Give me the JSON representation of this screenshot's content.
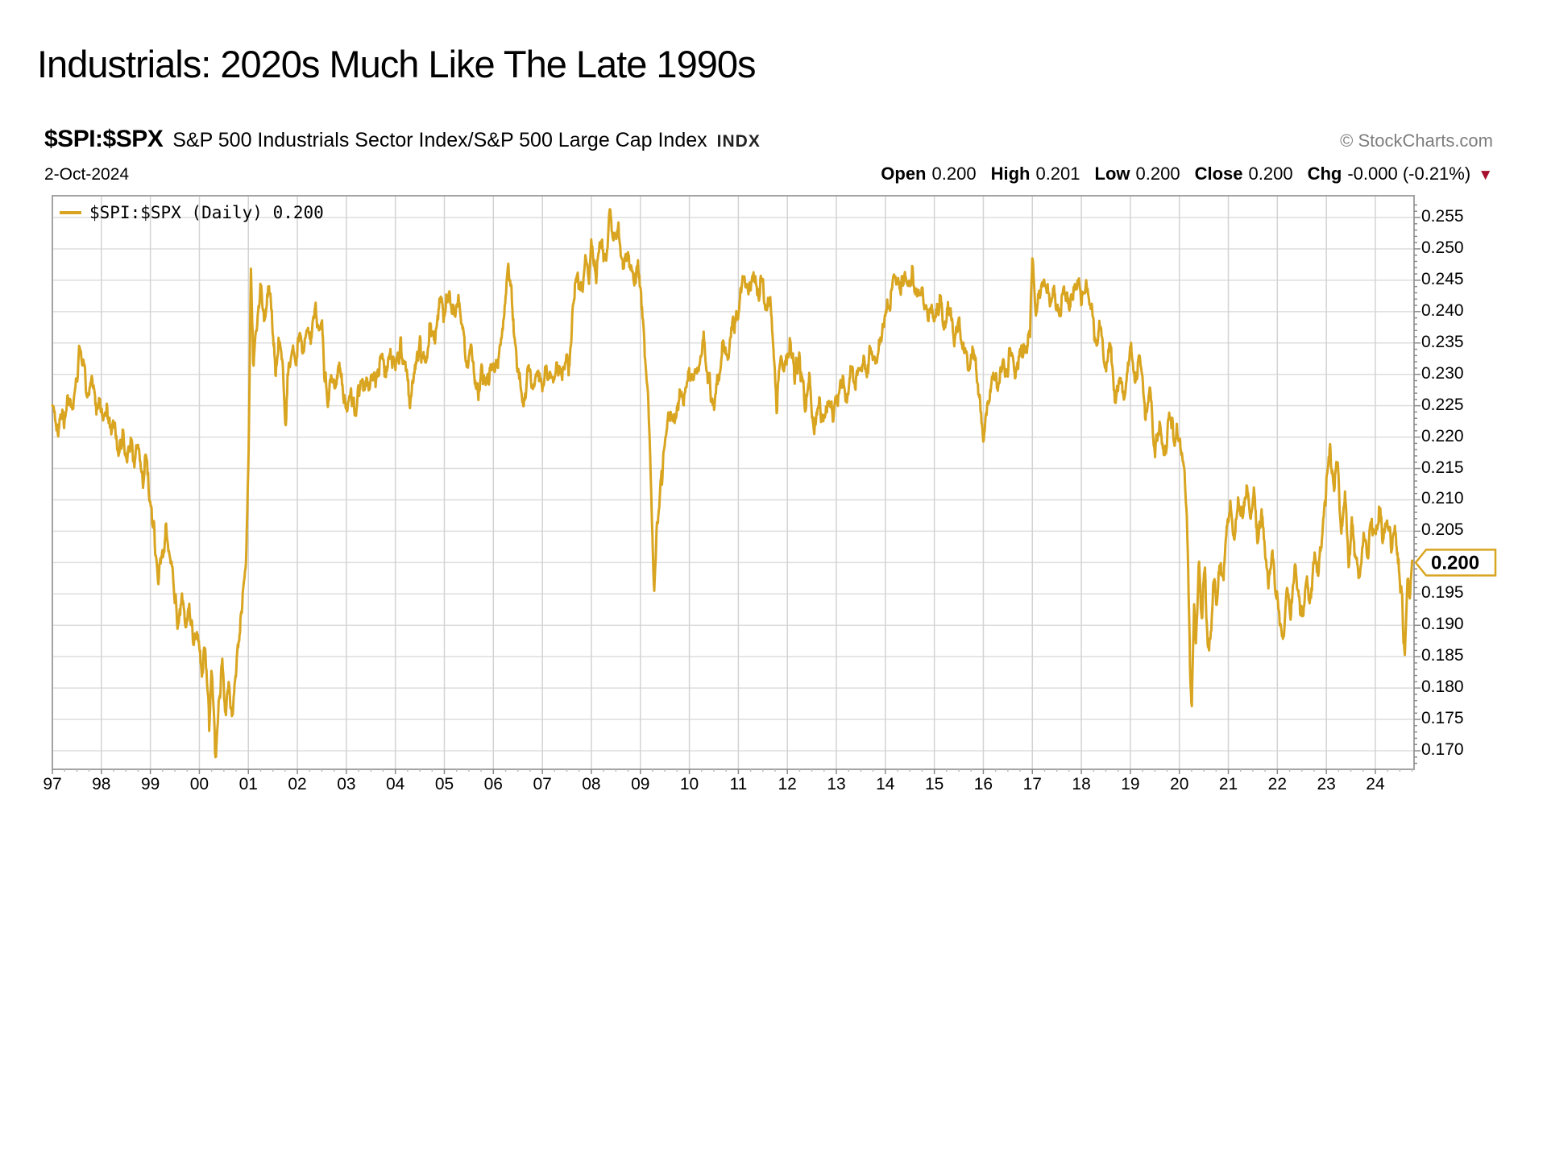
{
  "page": {
    "title": "Industrials: 2020s Much Like The Late 1990s"
  },
  "chart": {
    "symbol": "$SPI:$SPX",
    "description": "S&P 500 Industrials Sector Index/S&P 500 Large Cap Index",
    "exchange": "INDX",
    "source": "© StockCharts.com",
    "date": "2-Oct-2024",
    "quote": {
      "open_label": "Open",
      "open": "0.200",
      "high_label": "High",
      "high": "0.201",
      "low_label": "Low",
      "low": "0.200",
      "close_label": "Close",
      "close": "0.200",
      "chg_label": "Chg",
      "chg": "-0.000 (-0.21%)",
      "direction_icon": "▼"
    },
    "legend": "$SPI:$SPX (Daily) 0.200",
    "last_price": "0.200",
    "colors": {
      "line": "#D9A520",
      "grid": "#DDDDDD",
      "grid_v": "#D3D3D3",
      "border": "#A3A3A3",
      "tick": "#8a8a8a",
      "minor_tick": "#bbbbbb",
      "down_arrow": "#A50F2D",
      "source_text": "#7d7d7d"
    }
  },
  "chart_data": {
    "type": "line",
    "title": "$SPI:$SPX (Daily)",
    "series_name": "$SPI:$SPX",
    "legend_position": "top-left",
    "grid": true,
    "xlim_years": [
      1997.0,
      2024.79
    ],
    "ylim": [
      0.167,
      0.2585
    ],
    "x_ticks": [
      "97",
      "98",
      "99",
      "00",
      "01",
      "02",
      "03",
      "04",
      "05",
      "06",
      "07",
      "08",
      "09",
      "10",
      "11",
      "12",
      "13",
      "14",
      "15",
      "16",
      "17",
      "18",
      "19",
      "20",
      "21",
      "22",
      "23",
      "24"
    ],
    "y_ticks": [
      "0.255",
      "0.250",
      "0.245",
      "0.240",
      "0.235",
      "0.230",
      "0.225",
      "0.220",
      "0.215",
      "0.210",
      "0.205",
      "0.200",
      "0.195",
      "0.190",
      "0.185",
      "0.180",
      "0.175",
      "0.170"
    ],
    "anchors": [
      [
        1997.0,
        0.2265
      ],
      [
        1997.08,
        0.2195
      ],
      [
        1997.16,
        0.2245
      ],
      [
        1997.24,
        0.2225
      ],
      [
        1997.32,
        0.2265
      ],
      [
        1997.4,
        0.2245
      ],
      [
        1997.48,
        0.2285
      ],
      [
        1997.56,
        0.2335
      ],
      [
        1997.64,
        0.2305
      ],
      [
        1997.72,
        0.2265
      ],
      [
        1997.8,
        0.2295
      ],
      [
        1997.88,
        0.2245
      ],
      [
        1997.96,
        0.2265
      ],
      [
        1998.04,
        0.2215
      ],
      [
        1998.12,
        0.2255
      ],
      [
        1998.2,
        0.2195
      ],
      [
        1998.28,
        0.2225
      ],
      [
        1998.36,
        0.2175
      ],
      [
        1998.44,
        0.2205
      ],
      [
        1998.52,
        0.2165
      ],
      [
        1998.6,
        0.2195
      ],
      [
        1998.68,
        0.2155
      ],
      [
        1998.76,
        0.2195
      ],
      [
        1998.84,
        0.2125
      ],
      [
        1998.92,
        0.2165
      ],
      [
        1999.0,
        0.2085
      ],
      [
        1999.08,
        0.2045
      ],
      [
        1999.16,
        0.1965
      ],
      [
        1999.24,
        0.2005
      ],
      [
        1999.32,
        0.2055
      ],
      [
        1999.4,
        0.2015
      ],
      [
        1999.48,
        0.1955
      ],
      [
        1999.56,
        0.1905
      ],
      [
        1999.64,
        0.1945
      ],
      [
        1999.72,
        0.1895
      ],
      [
        1999.8,
        0.1925
      ],
      [
        1999.88,
        0.1865
      ],
      [
        1999.96,
        0.1885
      ],
      [
        2000.04,
        0.1825
      ],
      [
        2000.12,
        0.1855
      ],
      [
        2000.2,
        0.1745
      ],
      [
        2000.26,
        0.1835
      ],
      [
        2000.33,
        0.1697
      ],
      [
        2000.4,
        0.1775
      ],
      [
        2000.47,
        0.1845
      ],
      [
        2000.54,
        0.1755
      ],
      [
        2000.6,
        0.1805
      ],
      [
        2000.67,
        0.1745
      ],
      [
        2000.74,
        0.1825
      ],
      [
        2000.81,
        0.1875
      ],
      [
        2000.88,
        0.1935
      ],
      [
        2000.95,
        0.2005
      ],
      [
        2001.0,
        0.2155
      ],
      [
        2001.05,
        0.2465
      ],
      [
        2001.1,
        0.2325
      ],
      [
        2001.18,
        0.2385
      ],
      [
        2001.25,
        0.2445
      ],
      [
        2001.32,
        0.2375
      ],
      [
        2001.4,
        0.2445
      ],
      [
        2001.48,
        0.2405
      ],
      [
        2001.55,
        0.2305
      ],
      [
        2001.62,
        0.2355
      ],
      [
        2001.7,
        0.2305
      ],
      [
        2001.76,
        0.2225
      ],
      [
        2001.82,
        0.2305
      ],
      [
        2001.9,
        0.2355
      ],
      [
        2001.97,
        0.2325
      ],
      [
        2002.05,
        0.2365
      ],
      [
        2002.12,
        0.2325
      ],
      [
        2002.2,
        0.2385
      ],
      [
        2002.28,
        0.2345
      ],
      [
        2002.36,
        0.2405
      ],
      [
        2002.44,
        0.2375
      ],
      [
        2002.5,
        0.2395
      ],
      [
        2002.55,
        0.2305
      ],
      [
        2002.62,
        0.2255
      ],
      [
        2002.7,
        0.2305
      ],
      [
        2002.78,
        0.2275
      ],
      [
        2002.86,
        0.2315
      ],
      [
        2002.94,
        0.2275
      ],
      [
        2003.02,
        0.2225
      ],
      [
        2003.1,
        0.2275
      ],
      [
        2003.2,
        0.2245
      ],
      [
        2003.3,
        0.2295
      ],
      [
        2003.4,
        0.2275
      ],
      [
        2003.5,
        0.2305
      ],
      [
        2003.6,
        0.2285
      ],
      [
        2003.7,
        0.2325
      ],
      [
        2003.8,
        0.2305
      ],
      [
        2003.9,
        0.2335
      ],
      [
        2004.0,
        0.2305
      ],
      [
        2004.1,
        0.2345
      ],
      [
        2004.2,
        0.2305
      ],
      [
        2004.3,
        0.2255
      ],
      [
        2004.4,
        0.2305
      ],
      [
        2004.5,
        0.2345
      ],
      [
        2004.6,
        0.2315
      ],
      [
        2004.7,
        0.2375
      ],
      [
        2004.8,
        0.2355
      ],
      [
        2004.9,
        0.2415
      ],
      [
        2005.0,
        0.2395
      ],
      [
        2005.1,
        0.2425
      ],
      [
        2005.2,
        0.2395
      ],
      [
        2005.3,
        0.2425
      ],
      [
        2005.38,
        0.2365
      ],
      [
        2005.46,
        0.2305
      ],
      [
        2005.54,
        0.2345
      ],
      [
        2005.62,
        0.2305
      ],
      [
        2005.7,
        0.2265
      ],
      [
        2005.78,
        0.2305
      ],
      [
        2005.86,
        0.2275
      ],
      [
        2005.94,
        0.2315
      ],
      [
        2006.0,
        0.2295
      ],
      [
        2006.1,
        0.2325
      ],
      [
        2006.2,
        0.2385
      ],
      [
        2006.3,
        0.2465
      ],
      [
        2006.38,
        0.2425
      ],
      [
        2006.45,
        0.2345
      ],
      [
        2006.55,
        0.2285
      ],
      [
        2006.62,
        0.2245
      ],
      [
        2006.7,
        0.2305
      ],
      [
        2006.8,
        0.2285
      ],
      [
        2006.9,
        0.2305
      ],
      [
        2007.0,
        0.2275
      ],
      [
        2007.1,
        0.2305
      ],
      [
        2007.2,
        0.2285
      ],
      [
        2007.3,
        0.2325
      ],
      [
        2007.4,
        0.2305
      ],
      [
        2007.5,
        0.2345
      ],
      [
        2007.55,
        0.2305
      ],
      [
        2007.65,
        0.2425
      ],
      [
        2007.72,
        0.2465
      ],
      [
        2007.8,
        0.2425
      ],
      [
        2007.88,
        0.2495
      ],
      [
        2007.95,
        0.2465
      ],
      [
        2008.0,
        0.2505
      ],
      [
        2008.1,
        0.2465
      ],
      [
        2008.2,
        0.2505
      ],
      [
        2008.3,
        0.2475
      ],
      [
        2008.38,
        0.256
      ],
      [
        2008.45,
        0.2505
      ],
      [
        2008.55,
        0.2535
      ],
      [
        2008.65,
        0.2465
      ],
      [
        2008.75,
        0.2505
      ],
      [
        2008.85,
        0.2445
      ],
      [
        2008.95,
        0.2465
      ],
      [
        2009.0,
        0.2425
      ],
      [
        2009.05,
        0.2385
      ],
      [
        2009.1,
        0.2325
      ],
      [
        2009.15,
        0.2285
      ],
      [
        2009.2,
        0.2155
      ],
      [
        2009.28,
        0.1965
      ],
      [
        2009.35,
        0.2065
      ],
      [
        2009.42,
        0.2125
      ],
      [
        2009.5,
        0.2185
      ],
      [
        2009.6,
        0.2245
      ],
      [
        2009.7,
        0.2215
      ],
      [
        2009.8,
        0.2275
      ],
      [
        2009.9,
        0.2255
      ],
      [
        2010.0,
        0.2305
      ],
      [
        2010.1,
        0.2285
      ],
      [
        2010.2,
        0.2325
      ],
      [
        2010.3,
        0.2355
      ],
      [
        2010.4,
        0.2285
      ],
      [
        2010.5,
        0.2255
      ],
      [
        2010.6,
        0.2305
      ],
      [
        2010.7,
        0.2355
      ],
      [
        2010.8,
        0.2335
      ],
      [
        2010.9,
        0.2375
      ],
      [
        2011.0,
        0.2405
      ],
      [
        2011.1,
        0.2455
      ],
      [
        2011.2,
        0.2425
      ],
      [
        2011.3,
        0.2465
      ],
      [
        2011.4,
        0.2425
      ],
      [
        2011.5,
        0.2455
      ],
      [
        2011.55,
        0.2405
      ],
      [
        2011.65,
        0.2425
      ],
      [
        2011.7,
        0.2355
      ],
      [
        2011.78,
        0.2255
      ],
      [
        2011.85,
        0.2325
      ],
      [
        2011.95,
        0.2305
      ],
      [
        2012.0,
        0.2325
      ],
      [
        2012.05,
        0.2355
      ],
      [
        2012.15,
        0.2305
      ],
      [
        2012.25,
        0.2325
      ],
      [
        2012.35,
        0.2255
      ],
      [
        2012.45,
        0.2285
      ],
      [
        2012.55,
        0.2205
      ],
      [
        2012.65,
        0.2255
      ],
      [
        2012.75,
        0.2225
      ],
      [
        2012.85,
        0.2255
      ],
      [
        2012.95,
        0.2235
      ],
      [
        2013.0,
        0.2255
      ],
      [
        2013.1,
        0.2285
      ],
      [
        2013.2,
        0.2265
      ],
      [
        2013.3,
        0.2305
      ],
      [
        2013.4,
        0.2285
      ],
      [
        2013.5,
        0.2325
      ],
      [
        2013.6,
        0.2305
      ],
      [
        2013.7,
        0.2345
      ],
      [
        2013.8,
        0.2325
      ],
      [
        2013.9,
        0.2365
      ],
      [
        2013.95,
        0.2385
      ],
      [
        2014.0,
        0.2395
      ],
      [
        2014.1,
        0.2425
      ],
      [
        2014.2,
        0.2465
      ],
      [
        2014.3,
        0.2435
      ],
      [
        2014.4,
        0.2465
      ],
      [
        2014.5,
        0.2435
      ],
      [
        2014.55,
        0.2465
      ],
      [
        2014.65,
        0.2425
      ],
      [
        2014.75,
        0.2445
      ],
      [
        2014.85,
        0.2385
      ],
      [
        2014.95,
        0.2415
      ],
      [
        2015.0,
        0.2385
      ],
      [
        2015.1,
        0.2415
      ],
      [
        2015.2,
        0.2385
      ],
      [
        2015.3,
        0.2415
      ],
      [
        2015.4,
        0.2365
      ],
      [
        2015.5,
        0.2385
      ],
      [
        2015.6,
        0.2335
      ],
      [
        2015.7,
        0.2305
      ],
      [
        2015.8,
        0.2345
      ],
      [
        2015.9,
        0.2285
      ],
      [
        2015.95,
        0.2245
      ],
      [
        2016.0,
        0.2205
      ],
      [
        2016.1,
        0.2255
      ],
      [
        2016.2,
        0.2305
      ],
      [
        2016.3,
        0.2285
      ],
      [
        2016.4,
        0.2325
      ],
      [
        2016.5,
        0.2305
      ],
      [
        2016.55,
        0.2345
      ],
      [
        2016.65,
        0.2305
      ],
      [
        2016.75,
        0.2345
      ],
      [
        2016.85,
        0.2325
      ],
      [
        2016.95,
        0.2365
      ],
      [
        2017.0,
        0.2475
      ],
      [
        2017.08,
        0.2395
      ],
      [
        2017.15,
        0.2425
      ],
      [
        2017.25,
        0.2455
      ],
      [
        2017.35,
        0.2405
      ],
      [
        2017.45,
        0.243
      ],
      [
        2017.55,
        0.2405
      ],
      [
        2017.65,
        0.243
      ],
      [
        2017.75,
        0.2405
      ],
      [
        2017.85,
        0.243
      ],
      [
        2017.95,
        0.2455
      ],
      [
        2018.0,
        0.2425
      ],
      [
        2018.1,
        0.2455
      ],
      [
        2018.2,
        0.2405
      ],
      [
        2018.3,
        0.2355
      ],
      [
        2018.4,
        0.2385
      ],
      [
        2018.5,
        0.2305
      ],
      [
        2018.6,
        0.2345
      ],
      [
        2018.7,
        0.2255
      ],
      [
        2018.8,
        0.2305
      ],
      [
        2018.9,
        0.2265
      ],
      [
        2018.95,
        0.2315
      ],
      [
        2019.05,
        0.2335
      ],
      [
        2019.1,
        0.2295
      ],
      [
        2019.2,
        0.2335
      ],
      [
        2019.3,
        0.2235
      ],
      [
        2019.4,
        0.2285
      ],
      [
        2019.5,
        0.2175
      ],
      [
        2019.6,
        0.2215
      ],
      [
        2019.7,
        0.2165
      ],
      [
        2019.8,
        0.2235
      ],
      [
        2019.9,
        0.2195
      ],
      [
        2020.0,
        0.2215
      ],
      [
        2020.08,
        0.2165
      ],
      [
        2020.15,
        0.2085
      ],
      [
        2020.2,
        0.1905
      ],
      [
        2020.25,
        0.1748
      ],
      [
        2020.3,
        0.1945
      ],
      [
        2020.34,
        0.1875
      ],
      [
        2020.4,
        0.2005
      ],
      [
        2020.46,
        0.1915
      ],
      [
        2020.52,
        0.1985
      ],
      [
        2020.58,
        0.1855
      ],
      [
        2020.64,
        0.1895
      ],
      [
        2020.7,
        0.1975
      ],
      [
        2020.76,
        0.1925
      ],
      [
        2020.82,
        0.2005
      ],
      [
        2020.9,
        0.1965
      ],
      [
        2020.96,
        0.2045
      ],
      [
        2021.05,
        0.2085
      ],
      [
        2021.12,
        0.2035
      ],
      [
        2021.2,
        0.2105
      ],
      [
        2021.3,
        0.2065
      ],
      [
        2021.38,
        0.2125
      ],
      [
        2021.45,
        0.2085
      ],
      [
        2021.52,
        0.2105
      ],
      [
        2021.6,
        0.2045
      ],
      [
        2021.68,
        0.2085
      ],
      [
        2021.75,
        0.2005
      ],
      [
        2021.82,
        0.1955
      ],
      [
        2021.9,
        0.2005
      ],
      [
        2021.97,
        0.1955
      ],
      [
        2022.05,
        0.1905
      ],
      [
        2022.12,
        0.1875
      ],
      [
        2022.2,
        0.1955
      ],
      [
        2022.28,
        0.1915
      ],
      [
        2022.36,
        0.1985
      ],
      [
        2022.44,
        0.1945
      ],
      [
        2022.52,
        0.1905
      ],
      [
        2022.6,
        0.1975
      ],
      [
        2022.68,
        0.1945
      ],
      [
        2022.76,
        0.2015
      ],
      [
        2022.84,
        0.1985
      ],
      [
        2022.92,
        0.2055
      ],
      [
        2023.0,
        0.2125
      ],
      [
        2023.08,
        0.219
      ],
      [
        2023.15,
        0.2105
      ],
      [
        2023.22,
        0.2155
      ],
      [
        2023.3,
        0.2055
      ],
      [
        2023.38,
        0.2105
      ],
      [
        2023.45,
        0.2005
      ],
      [
        2023.52,
        0.2065
      ],
      [
        2023.6,
        0.2005
      ],
      [
        2023.68,
        0.1965
      ],
      [
        2023.76,
        0.2035
      ],
      [
        2023.84,
        0.2005
      ],
      [
        2023.92,
        0.2065
      ],
      [
        2024.0,
        0.2035
      ],
      [
        2024.08,
        0.2085
      ],
      [
        2024.16,
        0.2035
      ],
      [
        2024.24,
        0.2075
      ],
      [
        2024.32,
        0.2025
      ],
      [
        2024.4,
        0.2055
      ],
      [
        2024.48,
        0.1985
      ],
      [
        2024.54,
        0.1945
      ],
      [
        2024.6,
        0.1835
      ],
      [
        2024.66,
        0.1985
      ],
      [
        2024.7,
        0.1935
      ],
      [
        2024.75,
        0.2003
      ]
    ]
  }
}
